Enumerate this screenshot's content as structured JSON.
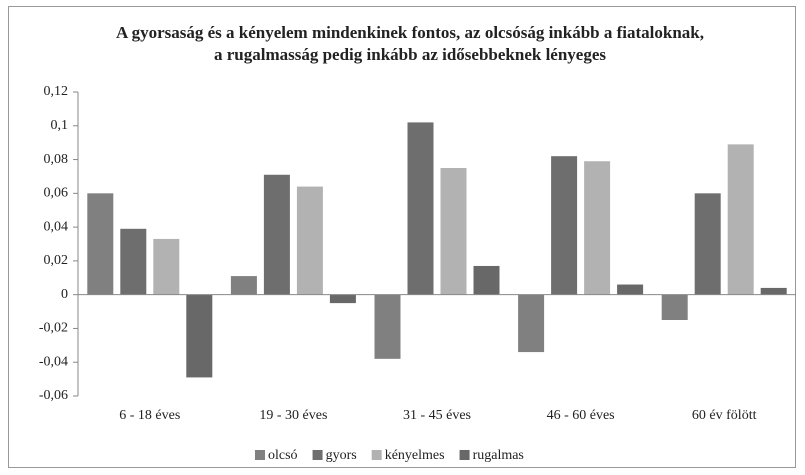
{
  "chart_data": {
    "type": "bar",
    "title": "A gyorsaság és a kényelem mindenkinek fontos, az olcsóság inkább a fiataloknak, a rugalmasság pedig inkább az idősebbeknek lényeges",
    "categories": [
      "6 - 18 éves",
      "19 - 30 éves",
      "31 - 45 éves",
      "46 - 60 éves",
      "60 év fölött"
    ],
    "series": [
      {
        "name": "olcsó",
        "color": "#808080",
        "values": [
          0.06,
          0.011,
          -0.038,
          -0.034,
          -0.015
        ]
      },
      {
        "name": "gyors",
        "color": "#6e6e6e",
        "values": [
          0.039,
          0.071,
          0.102,
          0.082,
          0.06
        ]
      },
      {
        "name": "kényelmes",
        "color": "#b2b2b2",
        "values": [
          0.033,
          0.064,
          0.075,
          0.079,
          0.089
        ]
      },
      {
        "name": "rugalmas",
        "color": "#686868",
        "values": [
          -0.049,
          -0.005,
          0.017,
          0.006,
          0.004
        ]
      }
    ],
    "ylim": [
      -0.06,
      0.12
    ],
    "yticks": [
      {
        "value": -0.06,
        "label": "-0,06"
      },
      {
        "value": -0.04,
        "label": "-0,04"
      },
      {
        "value": -0.02,
        "label": "-0,02"
      },
      0,
      {
        "value": 0.02,
        "label": "0,02"
      },
      {
        "value": 0.04,
        "label": "0,04"
      },
      {
        "value": 0.06,
        "label": "0,06"
      },
      {
        "value": 0.08,
        "label": "0,08"
      },
      {
        "value": 0.1,
        "label": "0,1"
      },
      {
        "value": 0.12,
        "label": "0,12"
      }
    ],
    "grid": false,
    "legend": "bottom"
  }
}
